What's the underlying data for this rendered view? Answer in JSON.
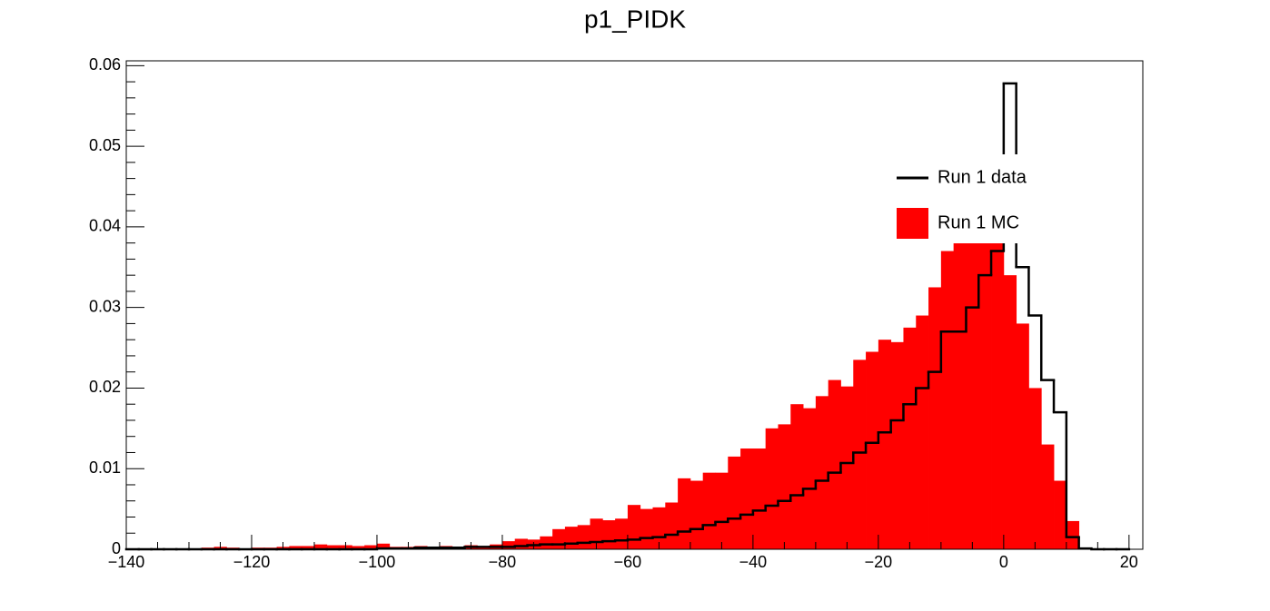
{
  "chart_data": {
    "type": "histogram",
    "title": "p1_PIDK",
    "bins": [
      -140,
      -138,
      -136,
      -134,
      -132,
      -130,
      -128,
      -126,
      -124,
      -122,
      -120,
      -118,
      -116,
      -114,
      -112,
      -110,
      -108,
      -106,
      -104,
      -102,
      -100,
      -98,
      -96,
      -94,
      -92,
      -90,
      -88,
      -86,
      -84,
      -82,
      -80,
      -78,
      -76,
      -74,
      -72,
      -70,
      -68,
      -66,
      -64,
      -62,
      -60,
      -58,
      -56,
      -54,
      -52,
      -50,
      -48,
      -46,
      -44,
      -42,
      -40,
      -38,
      -36,
      -34,
      -32,
      -30,
      -28,
      -26,
      -24,
      -22,
      -20,
      -18,
      -16,
      -14,
      -12,
      -10,
      -8,
      -6,
      -4,
      -2,
      0,
      2,
      4,
      6,
      8,
      10,
      12,
      14,
      16,
      18,
      20
    ],
    "series": [
      {
        "name": "Run 1 data",
        "color": "#000000",
        "style": "step",
        "values": [
          0,
          0,
          0,
          0,
          0,
          0,
          0,
          0,
          0,
          0,
          0,
          0,
          0,
          0,
          0,
          0,
          0,
          0,
          0,
          0,
          0.0001,
          0.0001,
          0.0001,
          0.0002,
          0.0002,
          0.0002,
          0.0002,
          0.0003,
          0.0003,
          0.0003,
          0.0003,
          0.0004,
          0.0005,
          0.0006,
          0.0006,
          0.0007,
          0.0008,
          0.0009,
          0.001,
          0.0011,
          0.0012,
          0.0014,
          0.0015,
          0.0018,
          0.0022,
          0.0025,
          0.003,
          0.0034,
          0.0038,
          0.0043,
          0.0048,
          0.0054,
          0.006,
          0.0067,
          0.0075,
          0.0085,
          0.0095,
          0.0107,
          0.012,
          0.0132,
          0.0145,
          0.016,
          0.018,
          0.02,
          0.022,
          0.027,
          0.027,
          0.03,
          0.034,
          0.037,
          0.0578,
          0.035,
          0.029,
          0.021,
          0.017,
          0.0015,
          0.0001,
          0,
          0,
          0
        ]
      },
      {
        "name": "Run 1 MC",
        "color": "#ff0000",
        "style": "filled",
        "values": [
          0.0001,
          0.0001,
          0,
          0.0001,
          0.0001,
          0.0001,
          0.0002,
          0.0003,
          0.0002,
          0.0001,
          0.0002,
          0.0002,
          0.0003,
          0.0004,
          0.0004,
          0.0006,
          0.0005,
          0.0005,
          0.0004,
          0.0005,
          0.0007,
          0.0003,
          0.0003,
          0.0004,
          0.0003,
          0.0004,
          0.0003,
          0.0005,
          0.0004,
          0.0006,
          0.001,
          0.0013,
          0.0012,
          0.0016,
          0.0025,
          0.0028,
          0.003,
          0.0038,
          0.0036,
          0.0038,
          0.0055,
          0.005,
          0.0052,
          0.0058,
          0.0088,
          0.0085,
          0.0095,
          0.0095,
          0.0115,
          0.0125,
          0.0125,
          0.015,
          0.0155,
          0.018,
          0.0175,
          0.019,
          0.021,
          0.0202,
          0.0235,
          0.0245,
          0.026,
          0.0257,
          0.0275,
          0.029,
          0.0325,
          0.037,
          0.04,
          0.041,
          0.043,
          0.04,
          0.034,
          0.028,
          0.02,
          0.013,
          0.0085,
          0.0035,
          0,
          0,
          0,
          0
        ]
      }
    ],
    "xlim": [
      -140,
      22.2
    ],
    "ylim": [
      0,
      0.0606
    ],
    "xticks": [
      {
        "value": -140,
        "label": "−140"
      },
      {
        "value": -120,
        "label": "−120"
      },
      {
        "value": -100,
        "label": "−100"
      },
      {
        "value": -80,
        "label": "−80"
      },
      {
        "value": -60,
        "label": "−60"
      },
      {
        "value": -40,
        "label": "−40"
      },
      {
        "value": -20,
        "label": "−20"
      },
      0,
      20
    ],
    "yticks": [
      0,
      0.01,
      0.02,
      0.03,
      0.04,
      0.05,
      0.06
    ],
    "legend": "upper right"
  }
}
